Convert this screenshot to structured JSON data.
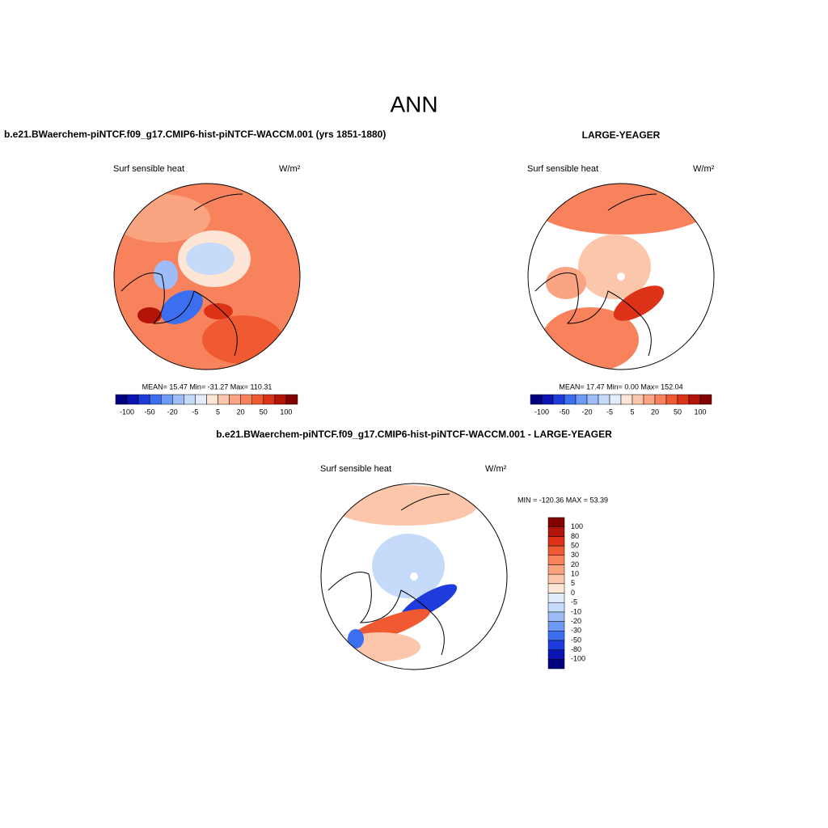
{
  "title": "ANN",
  "palette": [
    "#000080",
    "#0a14b4",
    "#1e3cdc",
    "#3c6ef0",
    "#6e9af5",
    "#9dbcf8",
    "#c6dafa",
    "#e2ecfb",
    "#fde6d6",
    "#fcc6aa",
    "#fba482",
    "#f8825c",
    "#f05a32",
    "#dc3218",
    "#b41408",
    "#820000"
  ],
  "colorbar_levels": [
    "-100",
    "-80",
    "-50",
    "-30",
    "-20",
    "-10",
    "-5",
    "0",
    "5",
    "10",
    "20",
    "30",
    "50",
    "80",
    "100"
  ],
  "panels": [
    {
      "header": "b.e21.BWaerchem-piNTCF.f09_g17.CMIP6-hist-piNTCF-WACCM.001 (yrs 1851-1880)",
      "variable": "Surf sensible heat",
      "units": "W/m²",
      "stats": "MEAN=  15.47  Min= -31.27  Max= 110.31"
    },
    {
      "header": "LARGE-YEAGER",
      "variable": "Surf sensible heat",
      "units": "W/m²",
      "stats": "MEAN=  17.47  Min=    0.00  Max= 152.04"
    },
    {
      "header": "b.e21.BWaerchem-piNTCF.f09_g17.CMIP6-hist-piNTCF-WACCM.001 - LARGE-YEAGER",
      "variable": "Surf sensible heat",
      "units": "W/m²",
      "stats": "MIN = -120.36 MAX =  53.39"
    }
  ]
}
